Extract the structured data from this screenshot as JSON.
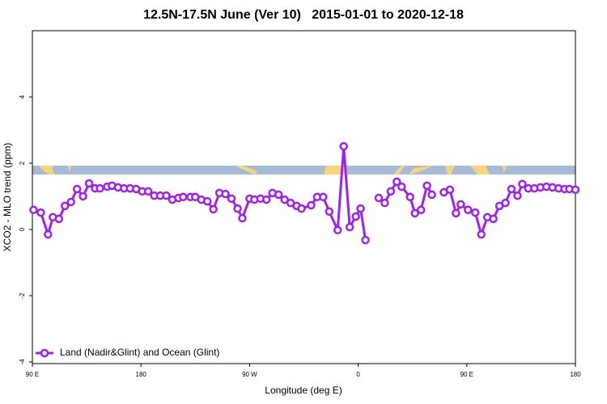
{
  "chart_data": {
    "type": "line",
    "title": "12.5N-17.5N June (Ver 10)   2015-01-01 to 2020-12-18",
    "x_label": "Longitude (deg E)",
    "y_label": "XCO2 - MLO trend (ppm)",
    "xlim": [
      90,
      540
    ],
    "xticks": [
      {
        "value": 90,
        "label": "90 E"
      },
      {
        "value": 180,
        "label": "180"
      },
      {
        "value": 270,
        "label": "90 W"
      },
      {
        "value": 360,
        "label": "0"
      },
      {
        "value": 450,
        "label": "90 E"
      },
      {
        "value": 540,
        "label": "180"
      }
    ],
    "ylim": [
      -4.05,
      6
    ],
    "yticks": [
      -4,
      -2,
      0,
      2,
      4
    ],
    "legend": "bottom-left",
    "x": [
      91,
      97,
      103,
      107,
      112,
      117,
      122,
      127,
      132,
      137,
      142,
      146,
      152,
      156,
      161,
      166,
      171,
      176,
      181,
      186,
      191,
      196,
      201,
      206,
      211,
      215,
      221,
      225,
      230,
      235,
      240,
      245,
      250,
      255,
      260,
      264,
      270,
      274,
      279,
      284,
      289,
      294,
      299,
      304,
      309,
      313,
      321,
      326,
      331,
      336,
      343,
      348,
      353,
      358,
      362,
      366,
      370,
      377,
      382,
      387,
      392,
      396,
      403,
      407,
      412,
      417,
      421,
      425,
      431,
      436,
      441,
      445,
      451,
      457,
      462,
      467,
      472,
      477,
      482,
      487,
      492,
      496,
      501,
      506,
      511,
      516,
      521,
      526,
      531,
      535,
      540
    ],
    "series": [
      {
        "name": "Land (Nadir&Glint) and Ocean (Glint)",
        "color": "#a020f0",
        "values": [
          0.59,
          0.51,
          -0.15,
          0.37,
          0.32,
          0.71,
          0.83,
          1.22,
          1.0,
          1.39,
          1.24,
          1.24,
          1.29,
          1.32,
          1.27,
          1.24,
          1.24,
          1.22,
          1.15,
          1.15,
          1.02,
          1.02,
          1.02,
          0.9,
          0.95,
          0.98,
          0.98,
          0.98,
          0.9,
          0.85,
          0.61,
          1.1,
          1.07,
          0.93,
          0.63,
          0.34,
          0.93,
          0.9,
          0.93,
          0.9,
          1.1,
          1.05,
          0.9,
          0.8,
          0.71,
          0.63,
          0.73,
          0.98,
          0.98,
          0.54,
          -0.02,
          2.51,
          0.07,
          0.39,
          0.63,
          -0.32,
          null,
          0.95,
          0.8,
          1.15,
          1.44,
          1.29,
          0.98,
          0.49,
          0.59,
          1.32,
          1.05,
          null,
          1.12,
          1.2,
          0.49,
          0.76,
          0.59,
          0.51,
          -0.15,
          0.37,
          0.32,
          0.71,
          0.8,
          1.22,
          1.02,
          1.37,
          1.24,
          1.24,
          1.27,
          1.29,
          1.27,
          1.24,
          1.22,
          1.22,
          1.2
        ]
      }
    ]
  }
}
